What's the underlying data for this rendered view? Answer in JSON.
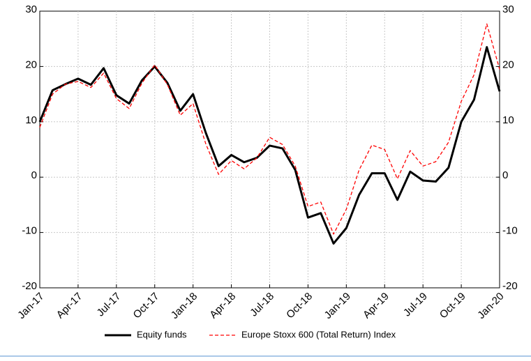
{
  "chart_data": {
    "type": "line",
    "categories": [
      "Jan-17",
      null,
      null,
      "Apr-17",
      null,
      null,
      "Jul-17",
      null,
      null,
      "Oct-17",
      null,
      null,
      "Jan-18",
      null,
      null,
      "Apr-18",
      null,
      null,
      "Jul-18",
      null,
      null,
      "Oct-18",
      null,
      null,
      "Jan-19",
      null,
      null,
      "Apr-19",
      null,
      null,
      "Jul-19",
      null,
      null,
      "Oct-19",
      null,
      null,
      "Jan-20"
    ],
    "series": [
      {
        "name": "Equity funds",
        "color": "#000000",
        "style": "solid",
        "values": [
          10,
          15.7,
          16.8,
          17.8,
          16.7,
          19.7,
          14.8,
          13.3,
          17.5,
          20,
          17,
          12,
          15,
          8,
          2,
          4,
          2.7,
          3.5,
          5.7,
          5.2,
          1.3,
          -7.3,
          -6.5,
          -12,
          -9.2,
          -3.2,
          0.7,
          0.7,
          -4.1,
          1,
          -0.6,
          -0.8,
          1.7,
          10,
          14,
          23.5,
          15.5
        ]
      },
      {
        "name": "Europe Stoxx 600 (Total Return) Index",
        "color": "#ff0000",
        "style": "dashed",
        "values": [
          9,
          15,
          16.8,
          17.3,
          16.2,
          18.8,
          14.2,
          12.4,
          17,
          20.3,
          16.7,
          11.2,
          13.3,
          6,
          0.5,
          3,
          1.5,
          3.5,
          7.2,
          5.9,
          2,
          -5.3,
          -4.5,
          -10.3,
          -5.8,
          1.3,
          5.8,
          5,
          -0.3,
          4.8,
          2,
          2.8,
          6.3,
          13.7,
          18.5,
          27.7,
          19.5
        ]
      }
    ],
    "ylim": [
      -20,
      30
    ],
    "yticks": [
      -20,
      -10,
      0,
      10,
      20,
      30
    ],
    "y2lim": [
      -20,
      30
    ],
    "y2ticks": [
      -20,
      -10,
      0,
      10,
      20,
      30
    ],
    "grid": true,
    "legend": "bottom"
  }
}
